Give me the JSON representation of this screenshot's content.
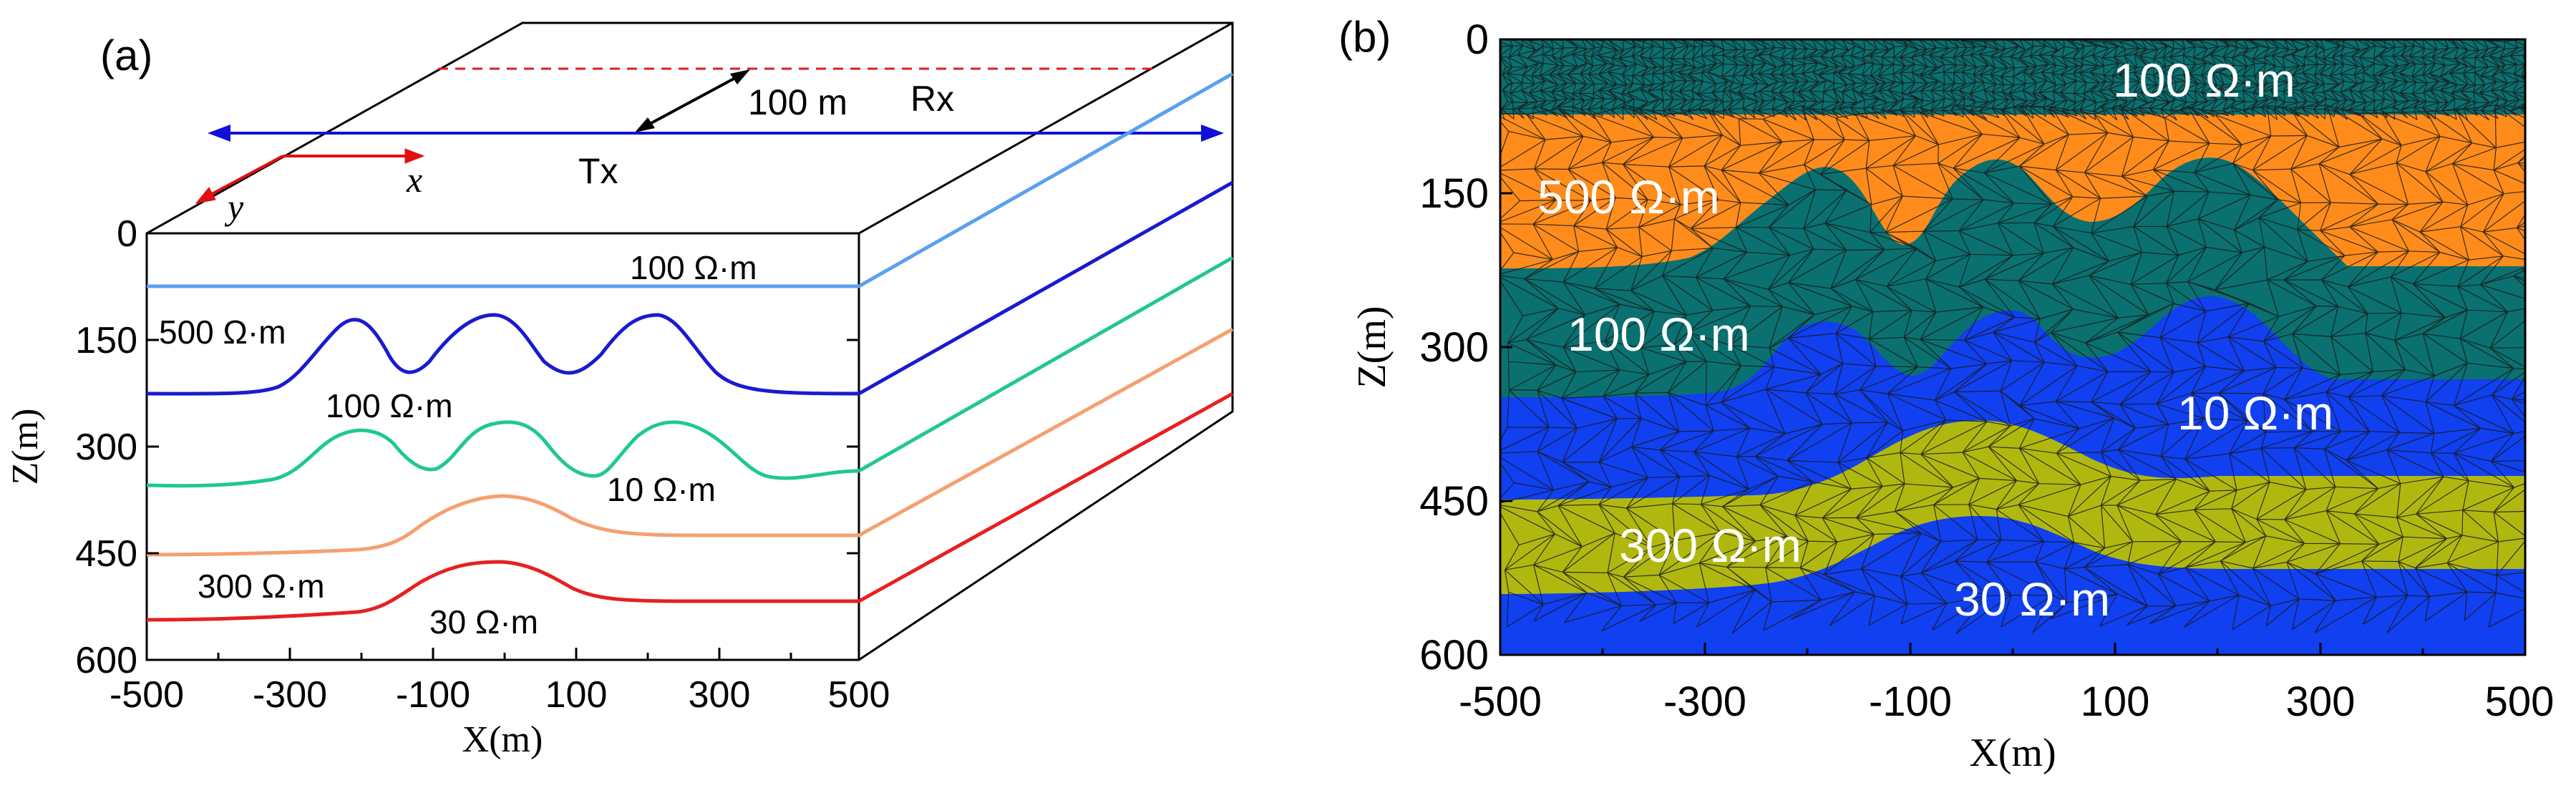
{
  "panel_a": {
    "label": "(a)",
    "receiver_label": "Rx",
    "transmitter_label": "Tx",
    "offset_label": "100 m",
    "x_axis_symbol": "x",
    "y_axis_symbol": "y",
    "x_axis_title": "X(m)",
    "z_axis_title": "Z(m)",
    "x_ticks": [
      "-500",
      "-300",
      "-100",
      "100",
      "300",
      "500"
    ],
    "z_ticks": [
      "0",
      "150",
      "300",
      "450",
      "600"
    ],
    "layer_labels": [
      {
        "id": "l1",
        "text": "100 Ω·m"
      },
      {
        "id": "l2",
        "text": "500 Ω·m"
      },
      {
        "id": "l3",
        "text": "100 Ω·m"
      },
      {
        "id": "l4",
        "text": "10 Ω·m"
      },
      {
        "id": "l5",
        "text": "300 Ω·m"
      },
      {
        "id": "l6",
        "text": "30 Ω·m"
      }
    ],
    "interface_colors": [
      "#5aa0f0",
      "#1a1ad0",
      "#20c890",
      "#f5a070",
      "#e82020"
    ],
    "tx_color": "#1010d8",
    "rx_color": "#d82020",
    "axis_arrow_color": "#e01010"
  },
  "panel_b": {
    "label": "(b)",
    "x_axis_title": "X(m)",
    "z_axis_title": "Z(m)",
    "x_ticks": [
      "-500",
      "-300",
      "-100",
      "100",
      "300",
      "500"
    ],
    "z_ticks": [
      "0",
      "150",
      "300",
      "450",
      "600"
    ],
    "layer_labels": [
      {
        "id": "b1",
        "text": "100 Ω·m"
      },
      {
        "id": "b2",
        "text": "500 Ω·m"
      },
      {
        "id": "b3",
        "text": "100 Ω·m"
      },
      {
        "id": "b4",
        "text": "10 Ω·m"
      },
      {
        "id": "b5",
        "text": "300 Ω·m"
      },
      {
        "id": "b6",
        "text": "30 Ω·m"
      }
    ],
    "layer_colors": [
      "#0a7070",
      "#ff8c1a",
      "#0a7070",
      "#1040f0",
      "#b0b810",
      "#1040f0"
    ],
    "mesh_color": "#1a1a1a"
  }
}
